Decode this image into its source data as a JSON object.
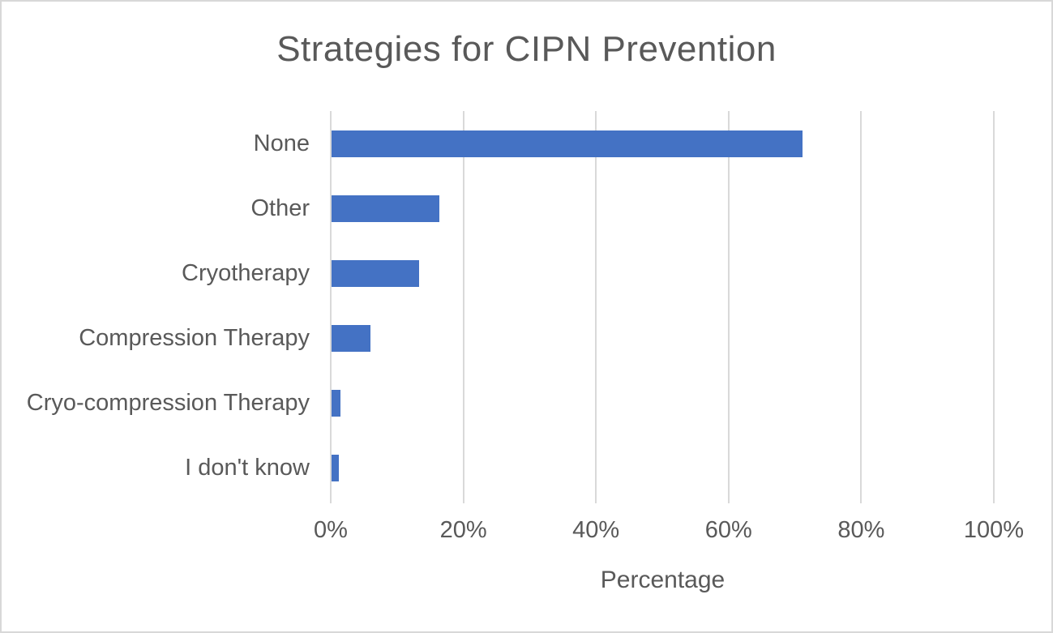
{
  "window": {
    "background_color": "#ffffff",
    "border_color": "#d8d8d8"
  },
  "chart_data": {
    "type": "bar",
    "orientation": "horizontal",
    "title": "Strategies for CIPN Prevention",
    "categories": [
      "None",
      "Other",
      "Cryotherapy",
      "Compression Therapy",
      "Cryo-compression Therapy",
      "I don't know"
    ],
    "values": [
      71,
      16.3,
      13.2,
      5.9,
      1.4,
      1.1
    ],
    "xlabel": "Percentage",
    "ylabel": "",
    "x_tick_labels": [
      "0%",
      "20%",
      "40%",
      "60%",
      "80%",
      "100%"
    ],
    "x_tick_values": [
      0,
      20,
      40,
      60,
      80,
      100
    ],
    "xlim": [
      0,
      100
    ],
    "grid": "vertical-gridlines-on",
    "legend": "none",
    "bar_color": "#4472c4",
    "gridline_color": "#d9d9d9",
    "text_color": "#595959"
  }
}
